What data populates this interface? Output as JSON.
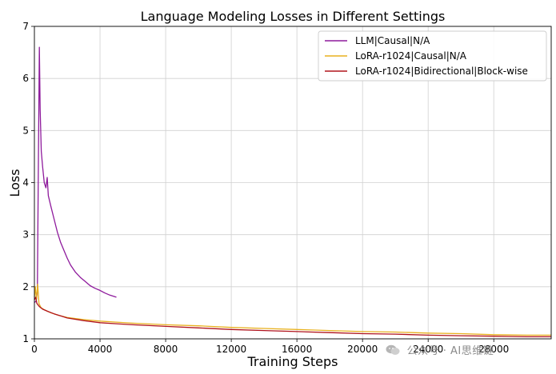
{
  "chart_data": {
    "type": "line",
    "title": "Language Modeling Losses in Different Settings",
    "xlabel": "Training Steps",
    "ylabel": "Loss",
    "xlim": [
      0,
      31500
    ],
    "ylim": [
      1,
      7
    ],
    "x_ticks": [
      0,
      4000,
      8000,
      12000,
      16000,
      20000,
      24000,
      28000
    ],
    "y_ticks": [
      1,
      2,
      3,
      4,
      5,
      6,
      7
    ],
    "grid": true,
    "legend_position": "top-right",
    "series": [
      {
        "name": "LLM|Causal|N/A",
        "color": "#8e1a9c",
        "points": [
          [
            0,
            1.7
          ],
          [
            100,
            1.72
          ],
          [
            180,
            1.9
          ],
          [
            250,
            4.6
          ],
          [
            300,
            6.6
          ],
          [
            350,
            5.4
          ],
          [
            420,
            4.6
          ],
          [
            500,
            4.3
          ],
          [
            600,
            4.0
          ],
          [
            700,
            3.9
          ],
          [
            780,
            4.1
          ],
          [
            850,
            3.75
          ],
          [
            1000,
            3.55
          ],
          [
            1200,
            3.3
          ],
          [
            1400,
            3.05
          ],
          [
            1600,
            2.85
          ],
          [
            1800,
            2.7
          ],
          [
            2000,
            2.55
          ],
          [
            2200,
            2.42
          ],
          [
            2500,
            2.28
          ],
          [
            2800,
            2.18
          ],
          [
            3100,
            2.1
          ],
          [
            3400,
            2.02
          ],
          [
            3700,
            1.97
          ],
          [
            4000,
            1.93
          ],
          [
            4300,
            1.88
          ],
          [
            4600,
            1.84
          ],
          [
            5000,
            1.8
          ]
        ]
      },
      {
        "name": "LoRA-r1024|Causal|N/A",
        "color": "#e8b11f",
        "points": [
          [
            0,
            1.8
          ],
          [
            60,
            2.0
          ],
          [
            120,
            1.75
          ],
          [
            200,
            2.05
          ],
          [
            280,
            1.68
          ],
          [
            400,
            1.6
          ],
          [
            600,
            1.56
          ],
          [
            1000,
            1.5
          ],
          [
            1500,
            1.45
          ],
          [
            2000,
            1.41
          ],
          [
            3000,
            1.37
          ],
          [
            4000,
            1.34
          ],
          [
            5000,
            1.32
          ],
          [
            6000,
            1.3
          ],
          [
            8000,
            1.27
          ],
          [
            10000,
            1.25
          ],
          [
            12000,
            1.22
          ],
          [
            14000,
            1.2
          ],
          [
            16000,
            1.18
          ],
          [
            18000,
            1.16
          ],
          [
            20000,
            1.14
          ],
          [
            22000,
            1.13
          ],
          [
            24000,
            1.11
          ],
          [
            26000,
            1.1
          ],
          [
            28000,
            1.08
          ],
          [
            30000,
            1.07
          ],
          [
            31500,
            1.07
          ]
        ]
      },
      {
        "name": "LoRA-r1024|Bidirectional|Block-wise",
        "color": "#b0131c",
        "points": [
          [
            0,
            1.75
          ],
          [
            80,
            1.8
          ],
          [
            150,
            1.68
          ],
          [
            300,
            1.62
          ],
          [
            500,
            1.57
          ],
          [
            800,
            1.53
          ],
          [
            1200,
            1.48
          ],
          [
            1600,
            1.44
          ],
          [
            2000,
            1.4
          ],
          [
            3000,
            1.35
          ],
          [
            4000,
            1.31
          ],
          [
            5000,
            1.29
          ],
          [
            6000,
            1.27
          ],
          [
            8000,
            1.24
          ],
          [
            10000,
            1.21
          ],
          [
            12000,
            1.18
          ],
          [
            14000,
            1.16
          ],
          [
            16000,
            1.14
          ],
          [
            18000,
            1.12
          ],
          [
            20000,
            1.1
          ],
          [
            22000,
            1.09
          ],
          [
            24000,
            1.07
          ],
          [
            26000,
            1.06
          ],
          [
            28000,
            1.05
          ],
          [
            30000,
            1.04
          ],
          [
            31500,
            1.04
          ]
        ]
      }
    ]
  },
  "watermark": {
    "text": "公众号 · AI思维链",
    "icon": "wechat-icon"
  }
}
